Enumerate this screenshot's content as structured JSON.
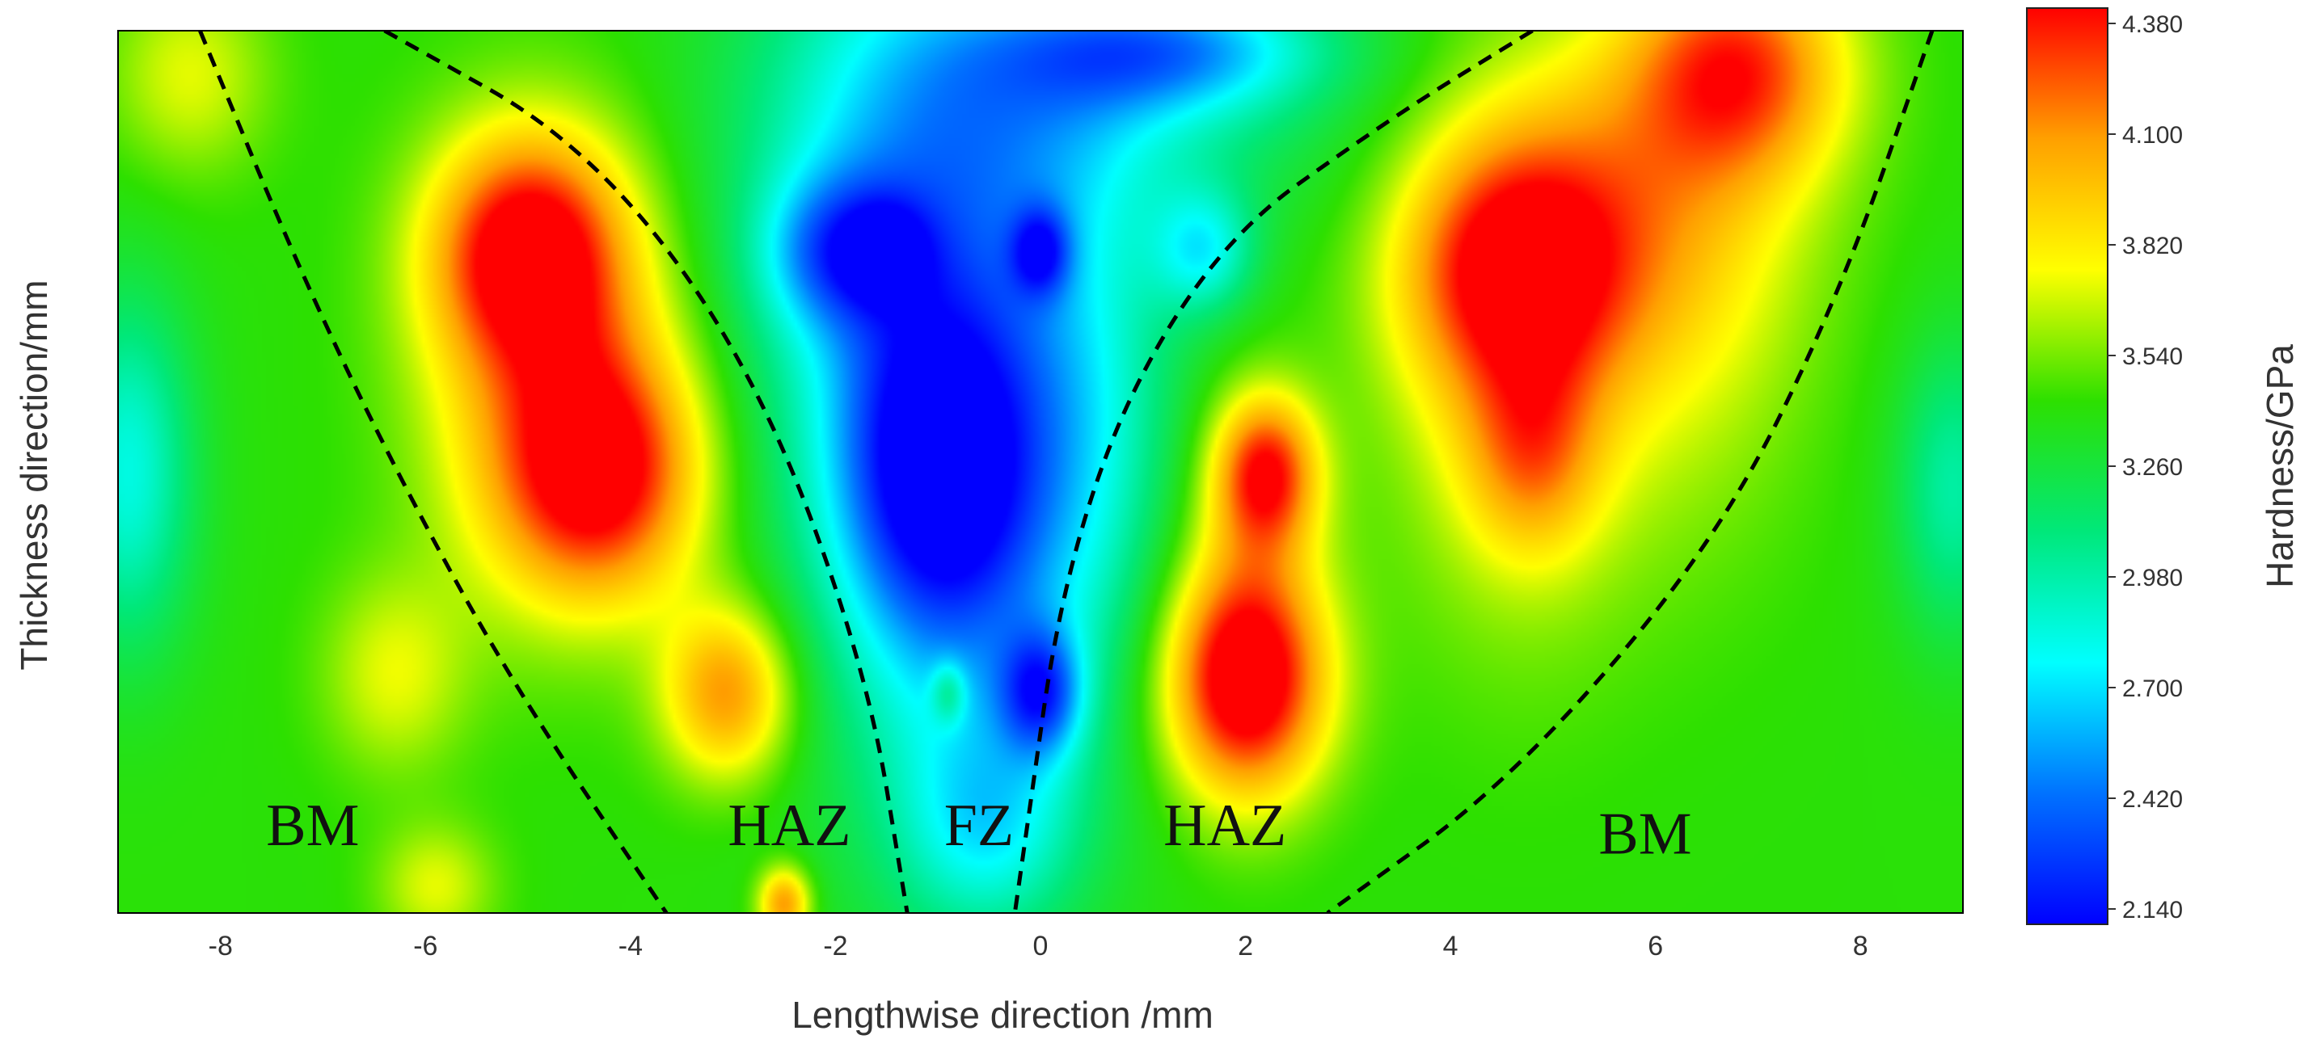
{
  "chart_data": {
    "type": "heatmap",
    "title": "",
    "xlabel": "Lengthwise direction /mm",
    "ylabel": "Thickness direction/mm",
    "xlim": [
      -9,
      9
    ],
    "x_ticks": [
      "-8",
      "-6",
      "-4",
      "-2",
      "0",
      "2",
      "4",
      "6",
      "8"
    ],
    "y_ticks": [],
    "colorbar": {
      "label": "Hardness/GPa",
      "range": [
        2.14,
        4.38
      ],
      "ticks": [
        "4.380",
        "4.100",
        "3.820",
        "3.540",
        "3.260",
        "2.980",
        "2.700",
        "2.420",
        "2.140"
      ],
      "colors": [
        "#0000ff",
        "#0072ff",
        "#00ffff",
        "#00e87a",
        "#2de000",
        "#ffff00",
        "#ffa000",
        "#ff0000"
      ]
    },
    "background_value": 3.4,
    "hotspots": [
      {
        "x": -5.0,
        "y": 0.75,
        "sx": 0.65,
        "sy": 0.09,
        "value": 0.95
      },
      {
        "x": -4.3,
        "y": 0.5,
        "sx": 0.7,
        "sy": 0.1,
        "value": 0.95
      },
      {
        "x": -4.8,
        "y": 0.62,
        "sx": 0.9,
        "sy": 0.18,
        "value": 0.45
      },
      {
        "x": -3.05,
        "y": 0.25,
        "sx": 0.45,
        "sy": 0.07,
        "value": 0.7
      },
      {
        "x": -2.5,
        "y": 0.01,
        "sx": 0.18,
        "sy": 0.03,
        "value": 0.7
      },
      {
        "x": -6.3,
        "y": 0.27,
        "sx": 0.5,
        "sy": 0.08,
        "value": 0.3
      },
      {
        "x": -5.9,
        "y": 0.03,
        "sx": 0.4,
        "sy": 0.05,
        "value": 0.3
      },
      {
        "x": 2.0,
        "y": 0.26,
        "sx": 0.55,
        "sy": 0.09,
        "value": 1.05
      },
      {
        "x": 2.2,
        "y": 0.5,
        "sx": 0.35,
        "sy": 0.06,
        "value": 0.85
      },
      {
        "x": 2.05,
        "y": 0.38,
        "sx": 0.5,
        "sy": 0.14,
        "value": 0.3
      },
      {
        "x": 4.6,
        "y": 0.73,
        "sx": 0.75,
        "sy": 0.1,
        "value": 0.8
      },
      {
        "x": 4.8,
        "y": 0.52,
        "sx": 0.45,
        "sy": 0.08,
        "value": 0.45
      },
      {
        "x": 4.7,
        "y": 0.62,
        "sx": 0.9,
        "sy": 0.22,
        "value": 0.35
      },
      {
        "x": 6.8,
        "y": 0.96,
        "sx": 0.75,
        "sy": 0.09,
        "value": 0.8
      },
      {
        "x": 5.8,
        "y": 0.8,
        "sx": 1.1,
        "sy": 0.14,
        "value": 0.4
      },
      {
        "x": 6.5,
        "y": 0.65,
        "sx": 0.8,
        "sy": 0.2,
        "value": 0.15
      },
      {
        "x": -8.3,
        "y": 0.95,
        "sx": 0.55,
        "sy": 0.08,
        "value": 0.3
      },
      {
        "x": -1.1,
        "y": 0.8,
        "sx": 1.3,
        "sy": 0.25,
        "value": -0.55
      },
      {
        "x": -1.0,
        "y": 0.5,
        "sx": 0.65,
        "sy": 0.13,
        "value": -0.85
      },
      {
        "x": -0.6,
        "y": 0.35,
        "sx": 0.9,
        "sy": 0.25,
        "value": -0.4
      },
      {
        "x": -2.0,
        "y": 0.75,
        "sx": 0.5,
        "sy": 0.06,
        "value": -0.55
      },
      {
        "x": -1.5,
        "y": 0.75,
        "sx": 0.3,
        "sy": 0.04,
        "value": -0.35
      },
      {
        "x": 0.0,
        "y": 0.75,
        "sx": 0.2,
        "sy": 0.035,
        "value": -0.6
      },
      {
        "x": 1.6,
        "y": 0.75,
        "sx": 0.35,
        "sy": 0.05,
        "value": -0.5
      },
      {
        "x": 0.0,
        "y": 0.25,
        "sx": 0.28,
        "sy": 0.05,
        "value": -0.75
      },
      {
        "x": -0.5,
        "y": 0.1,
        "sx": 0.6,
        "sy": 0.08,
        "value": -0.4
      },
      {
        "x": 1.2,
        "y": 0.98,
        "sx": 1.1,
        "sy": 0.05,
        "value": -0.65
      },
      {
        "x": 0.6,
        "y": 0.92,
        "sx": 1.6,
        "sy": 0.1,
        "value": -0.35
      },
      {
        "x": 0.5,
        "y": 0.55,
        "sx": 0.6,
        "sy": 0.2,
        "value": -0.3
      },
      {
        "x": -8.9,
        "y": 0.5,
        "sx": 0.45,
        "sy": 0.14,
        "value": -0.55
      },
      {
        "x": 8.9,
        "y": 0.48,
        "sx": 0.4,
        "sy": 0.12,
        "value": -0.4
      },
      {
        "x": -0.9,
        "y": 0.25,
        "sx": 0.12,
        "sy": 0.025,
        "value": 0.35
      },
      {
        "x": -1.2,
        "y": 0.6,
        "sx": 1.0,
        "sy": 0.35,
        "value": -0.25
      }
    ],
    "boundaries": [
      {
        "points": [
          [
            -8.2,
            1.0
          ],
          [
            -7.2,
            0.72
          ],
          [
            -6.2,
            0.48
          ],
          [
            -5.1,
            0.25
          ],
          [
            -3.65,
            0.0
          ]
        ]
      },
      {
        "points": [
          [
            -6.4,
            1.0
          ],
          [
            -4.4,
            0.87
          ],
          [
            -2.8,
            0.62
          ],
          [
            -1.7,
            0.28
          ],
          [
            -1.3,
            0.0
          ]
        ]
      },
      {
        "points": [
          [
            4.8,
            1.0
          ],
          [
            3.4,
            0.9
          ],
          [
            1.6,
            0.75
          ],
          [
            0.3,
            0.45
          ],
          [
            -0.25,
            0.0
          ]
        ]
      },
      {
        "points": [
          [
            8.7,
            1.0
          ],
          [
            7.8,
            0.7
          ],
          [
            6.6,
            0.42
          ],
          [
            4.6,
            0.15
          ],
          [
            2.8,
            0.0
          ]
        ]
      }
    ],
    "regions": [
      {
        "label": "BM",
        "x": -7.1,
        "y": 0.1
      },
      {
        "label": "HAZ",
        "x": -2.45,
        "y": 0.1
      },
      {
        "label": "FZ",
        "x": -0.6,
        "y": 0.1
      },
      {
        "label": "HAZ",
        "x": 1.8,
        "y": 0.1
      },
      {
        "label": "BM",
        "x": 5.9,
        "y": 0.09
      }
    ]
  }
}
